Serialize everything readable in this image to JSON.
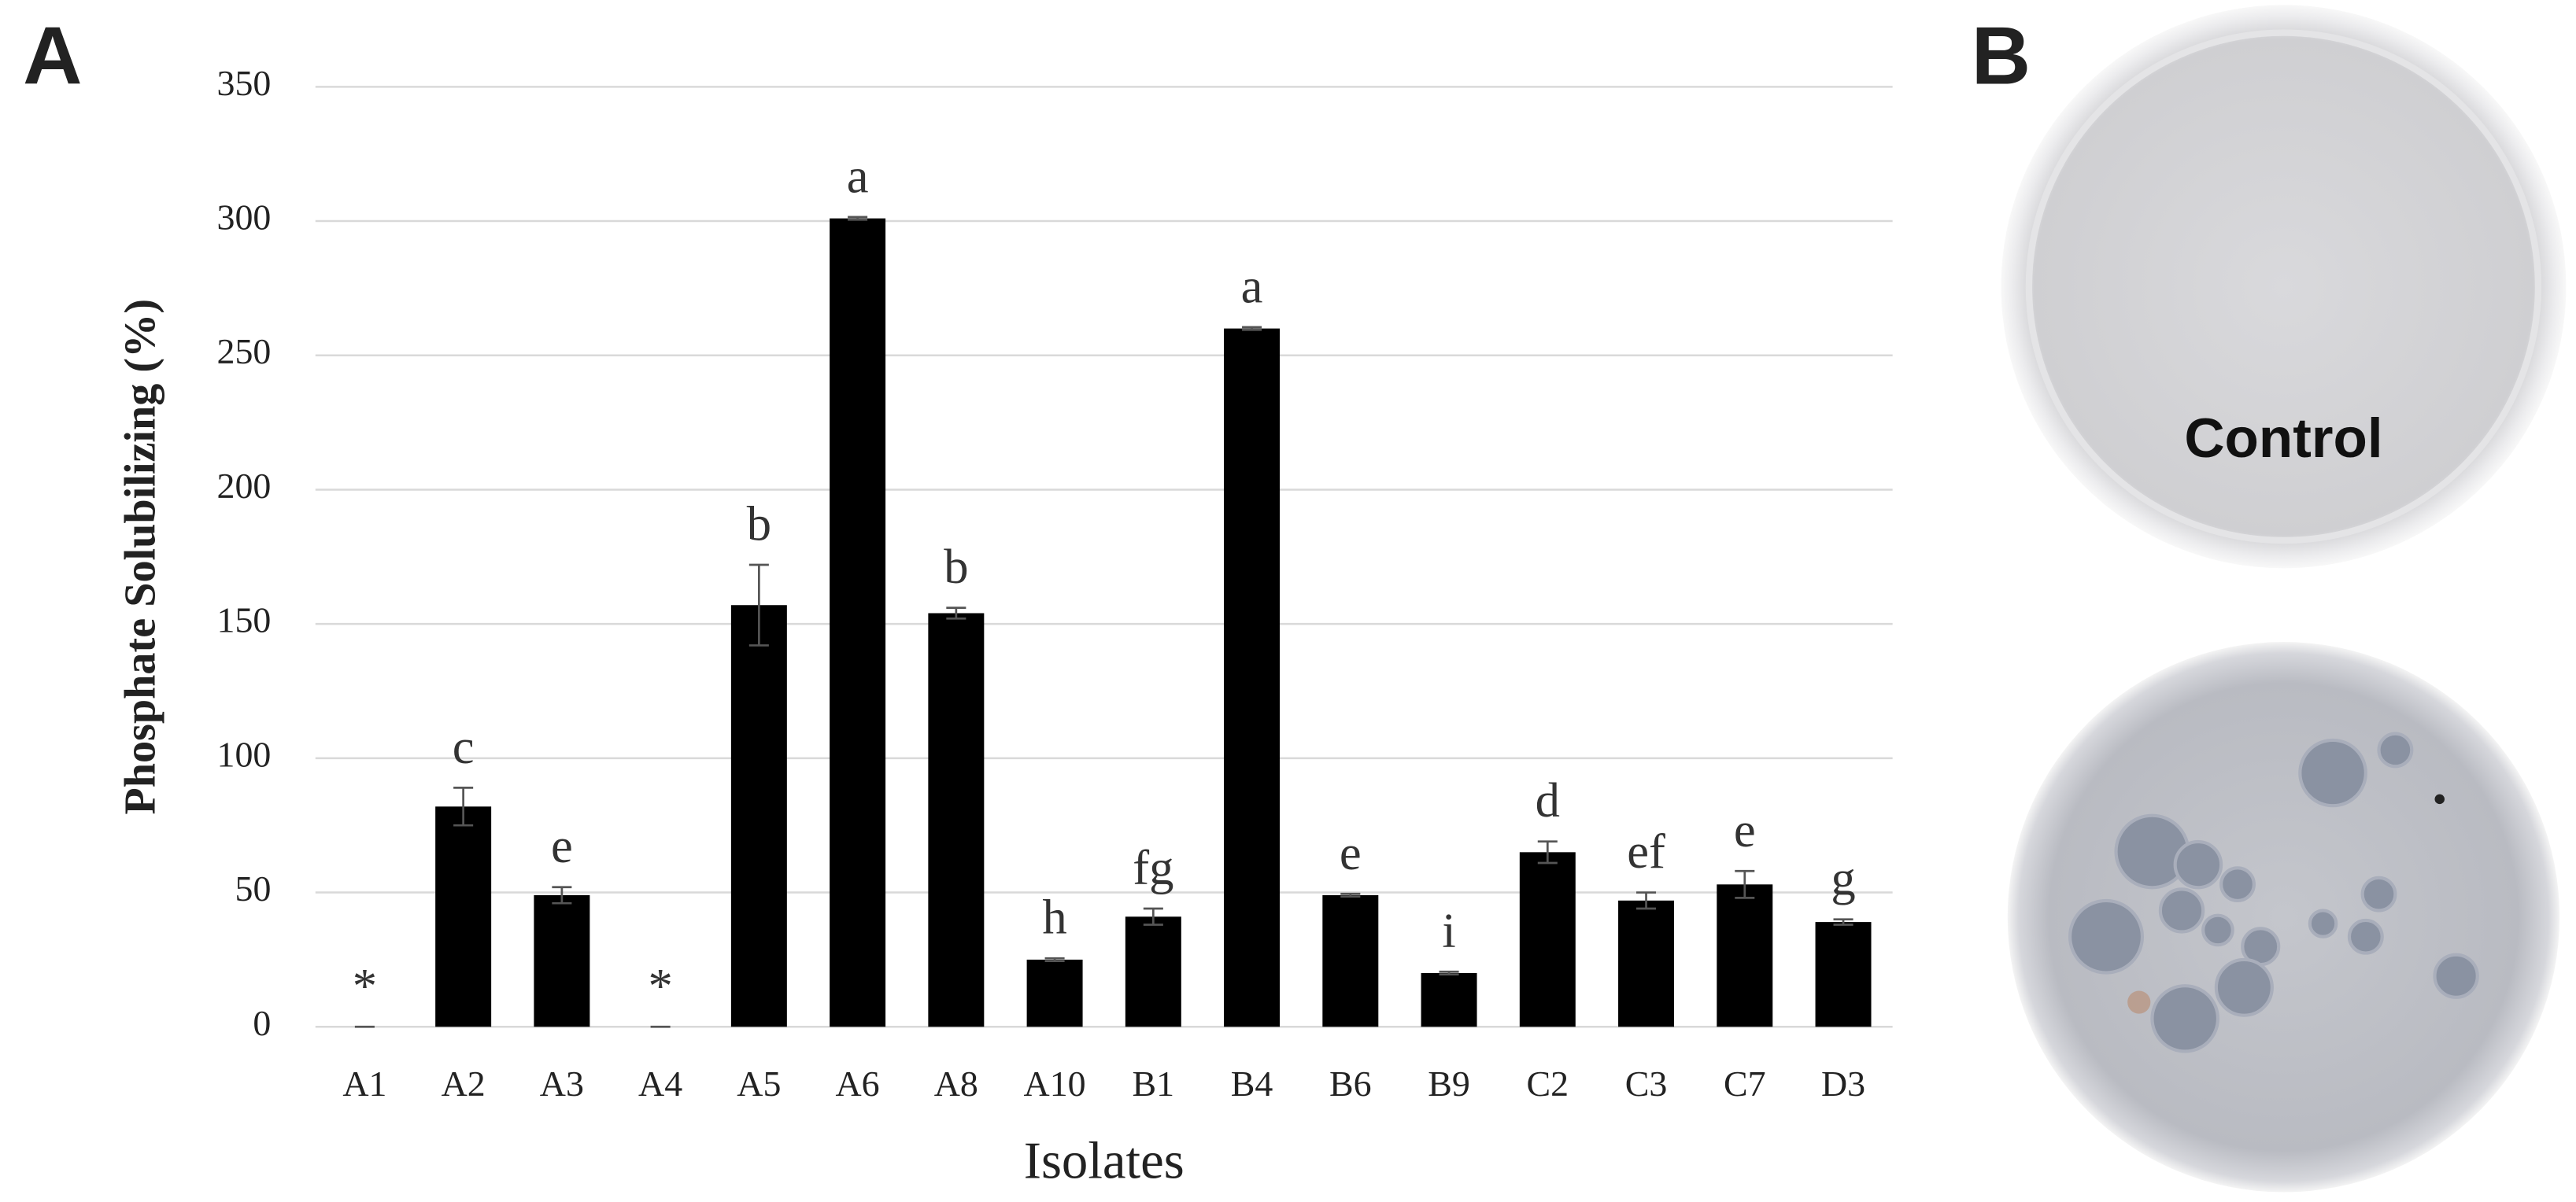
{
  "panel_labels": [
    "A",
    "B"
  ],
  "chart_data": {
    "type": "bar",
    "y_label": "Phosphate Solubilizing  (%)",
    "x_label": "Isolates",
    "categories": [
      "A1",
      "A2",
      "A3",
      "A4",
      "A5",
      "A6",
      "A8",
      "A10",
      "B1",
      "B4",
      "B6",
      "B9",
      "C2",
      "C3",
      "C7",
      "D3"
    ],
    "values": [
      0,
      82,
      49,
      0,
      157,
      301,
      154,
      25,
      41,
      260,
      49,
      20,
      65,
      47,
      53,
      39
    ],
    "errors": [
      0,
      7,
      3,
      0,
      15,
      0.5,
      2,
      0.5,
      3,
      0.5,
      0.5,
      0.5,
      4,
      3,
      5,
      1
    ],
    "annotations": [
      "*",
      "c",
      "e",
      "*",
      "b",
      "a",
      "b",
      "h",
      "fg",
      "a",
      "e",
      "i",
      "d",
      "ef",
      "e",
      "g"
    ],
    "color": "#000000",
    "ylim": [
      0,
      350
    ],
    "yticks": [
      0,
      50,
      100,
      150,
      200,
      250,
      300,
      350
    ],
    "grid": true
  },
  "plate_label": "Control"
}
